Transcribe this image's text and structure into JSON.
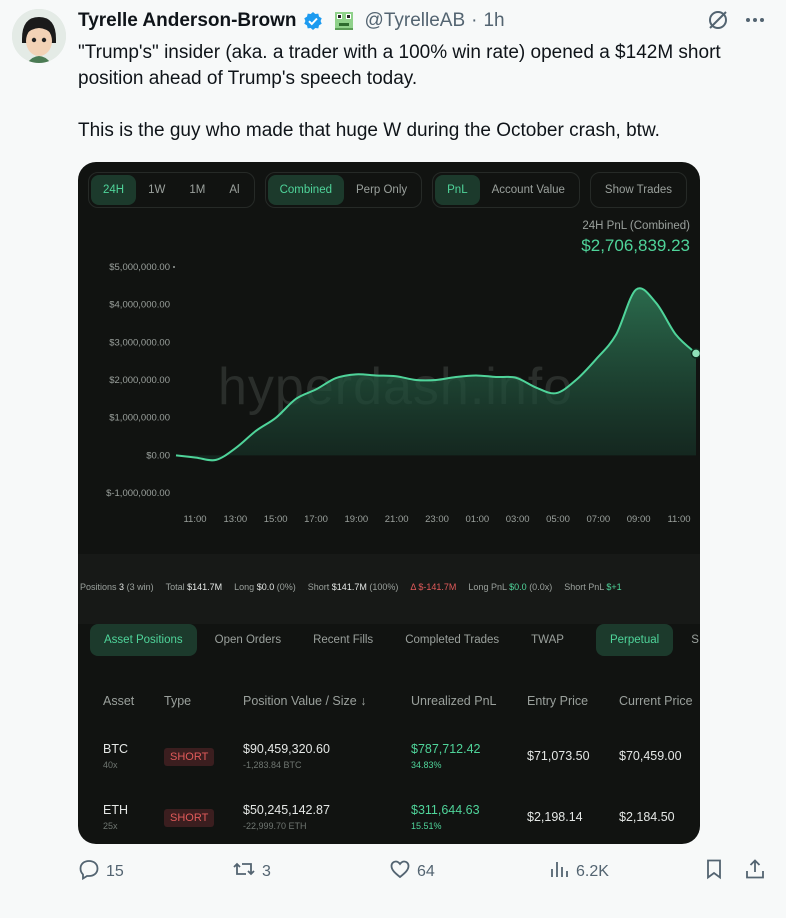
{
  "tweet": {
    "display_name": "Tyrelle Anderson-Brown",
    "handle": "@TyrelleAB",
    "separator": "·",
    "time": "1h",
    "text_line1": "\"Trump's\" insider (aka. a trader with a 100% win rate) opened a $142M short position ahead of Trump's speech today.",
    "text_line2": "This is the guy who made that huge W during the October crash, btw."
  },
  "icons": [
    "verified-badge-icon",
    "frog-emoji-icon",
    "grok-icon",
    "more-icon",
    "reply-icon",
    "retweet-icon",
    "like-icon",
    "views-icon",
    "bookmark-icon",
    "share-icon"
  ],
  "media": {
    "time_tabs": [
      "24H",
      "1W",
      "1M",
      "Al"
    ],
    "scope_tabs": [
      "Combined",
      "Perp Only"
    ],
    "metric_tabs": [
      "PnL",
      "Account Value"
    ],
    "show_trades": "Show Trades",
    "pnl_label": "24H PnL (Combined)",
    "pnl_value": "$2,706,839.23",
    "watermark": "hyperdash.info",
    "stats": {
      "positions_label": "Positions",
      "positions_value": "3",
      "positions_win": "(3 win)",
      "total_label": "Total",
      "total_value": "$141.7M",
      "long_label": "Long",
      "long_value": "$0.0",
      "long_pct": "(0%)",
      "short_label": "Short",
      "short_value": "$141.7M",
      "short_pct": "(100%)",
      "delta_label": "Δ",
      "delta_value": "$-141.7M",
      "longpnl_label": "Long PnL",
      "longpnl_value": "$0.0",
      "longpnl_x": "(0.0x)",
      "shortpnl_label": "Short PnL",
      "shortpnl_value": "$+1"
    },
    "position_tabs": [
      "Asset Positions",
      "Open Orders",
      "Recent Fills",
      "Completed Trades",
      "TWAP"
    ],
    "market_tabs": [
      "Perpetual",
      "S"
    ],
    "table": {
      "headers": [
        "Asset",
        "Type",
        "Position Value / Size ↓",
        "Unrealized PnL",
        "Entry Price",
        "Current Price"
      ],
      "rows": [
        {
          "asset": "BTC",
          "leverage": "40x",
          "type": "SHORT",
          "value": "$90,459,320.60",
          "size": "-1,283.84 BTC",
          "upnl": "$787,712.42",
          "upnl_pct": "34.83%",
          "entry": "$71,073.50",
          "current": "$70,459.00"
        },
        {
          "asset": "ETH",
          "leverage": "25x",
          "type": "SHORT",
          "value": "$50,245,142.87",
          "size": "-22,999.70 ETH",
          "upnl": "$311,644.63",
          "upnl_pct": "15.51%",
          "entry": "$2,198.14",
          "current": "$2,184.50"
        }
      ]
    }
  },
  "chart_data": {
    "type": "area",
    "title": "24H PnL (Combined)",
    "xlabel": "",
    "ylabel": "",
    "ylim": [
      -1000000,
      5000000
    ],
    "y_ticks": [
      "$5,000,000.00",
      "$4,000,000.00",
      "$3,000,000.00",
      "$2,000,000.00",
      "$1,000,000.00",
      "$0.00",
      "$-1,000,000.00"
    ],
    "x_ticks": [
      "11:00",
      "13:00",
      "15:00",
      "17:00",
      "19:00",
      "21:00",
      "23:00",
      "01:00",
      "03:00",
      "05:00",
      "07:00",
      "09:00",
      "11:00"
    ],
    "x": [
      0,
      1,
      2,
      3,
      4,
      5,
      6,
      7,
      8,
      9,
      10,
      11,
      12,
      13,
      14,
      15,
      16,
      17,
      18,
      19,
      20,
      21,
      22,
      23,
      24,
      25,
      26
    ],
    "values": [
      0,
      -60000,
      -120000,
      200000,
      650000,
      1000000,
      1500000,
      1750000,
      2050000,
      2150000,
      2120000,
      2100000,
      2000000,
      2000000,
      2080000,
      2120000,
      2080000,
      2060000,
      1800000,
      1650000,
      2000000,
      2550000,
      3200000,
      4400000,
      4050000,
      3200000,
      2706839.23
    ],
    "color": "#4fd49a",
    "grid": false
  },
  "actions": {
    "replies": "15",
    "reposts": "3",
    "likes": "64",
    "views": "6.2K"
  }
}
